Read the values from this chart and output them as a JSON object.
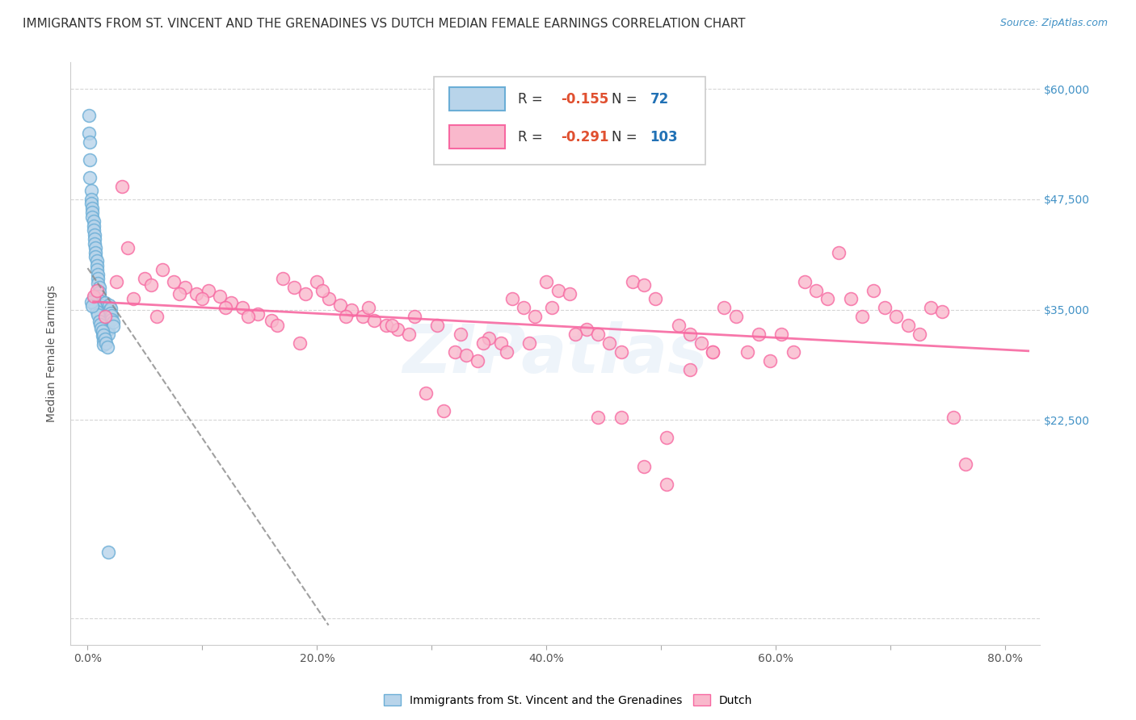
{
  "title": "IMMIGRANTS FROM ST. VINCENT AND THE GRENADINES VS DUTCH MEDIAN FEMALE EARNINGS CORRELATION CHART",
  "source": "Source: ZipAtlas.com",
  "ylabel": "Median Female Earnings",
  "x_ticks": [
    0.0,
    0.1,
    0.2,
    0.3,
    0.4,
    0.5,
    0.6,
    0.7,
    0.8
  ],
  "x_tick_labels": [
    "0.0%",
    "",
    "20.0%",
    "",
    "40.0%",
    "",
    "60.0%",
    "",
    "80.0%"
  ],
  "y_ticks": [
    0,
    22500,
    35000,
    47500,
    60000
  ],
  "y_tick_labels": [
    "",
    "$22,500",
    "$35,000",
    "$47,500",
    "$60,000"
  ],
  "xlim": [
    -0.015,
    0.83
  ],
  "ylim": [
    -3000,
    63000
  ],
  "blue_face_color": "#b8d4ea",
  "blue_edge_color": "#6baed6",
  "pink_face_color": "#f9b8cc",
  "pink_edge_color": "#f768a1",
  "blue_R": "-0.155",
  "blue_N": "72",
  "pink_R": "-0.291",
  "pink_N": "103",
  "legend_label_blue": "Immigrants from St. Vincent and the Grenadines",
  "legend_label_pink": "Dutch",
  "watermark": "ZIPatlas",
  "blue_scatter_x": [
    0.001,
    0.001,
    0.002,
    0.002,
    0.002,
    0.003,
    0.003,
    0.003,
    0.004,
    0.004,
    0.004,
    0.005,
    0.005,
    0.005,
    0.006,
    0.006,
    0.006,
    0.007,
    0.007,
    0.007,
    0.008,
    0.008,
    0.008,
    0.009,
    0.009,
    0.009,
    0.01,
    0.01,
    0.01,
    0.011,
    0.011,
    0.011,
    0.012,
    0.012,
    0.012,
    0.013,
    0.013,
    0.013,
    0.014,
    0.014,
    0.015,
    0.015,
    0.016,
    0.016,
    0.017,
    0.017,
    0.018,
    0.018,
    0.019,
    0.019,
    0.02,
    0.02,
    0.021,
    0.021,
    0.022,
    0.022,
    0.005,
    0.006,
    0.007,
    0.008,
    0.009,
    0.01,
    0.011,
    0.012,
    0.003,
    0.004,
    0.013,
    0.014,
    0.015,
    0.016,
    0.017,
    0.018
  ],
  "blue_scatter_y": [
    57000,
    55000,
    54000,
    52000,
    50000,
    48500,
    47500,
    47000,
    46500,
    46000,
    45500,
    45000,
    44500,
    44000,
    43500,
    43000,
    42500,
    42000,
    41500,
    41000,
    40500,
    40000,
    39500,
    39000,
    38500,
    38000,
    37500,
    37000,
    36500,
    36000,
    35500,
    35000,
    34500,
    34000,
    33500,
    33000,
    32500,
    32000,
    31500,
    31000,
    35800,
    35200,
    34800,
    34200,
    33800,
    33200,
    32800,
    32200,
    35500,
    34900,
    35100,
    34600,
    34300,
    33900,
    33600,
    33100,
    36200,
    35700,
    35300,
    34800,
    34400,
    33700,
    33300,
    32900,
    35900,
    35400,
    32600,
    32100,
    31700,
    31200,
    30800,
    7500
  ],
  "pink_scatter_x": [
    0.005,
    0.008,
    0.03,
    0.035,
    0.05,
    0.055,
    0.065,
    0.075,
    0.085,
    0.095,
    0.105,
    0.115,
    0.125,
    0.135,
    0.148,
    0.16,
    0.17,
    0.18,
    0.19,
    0.2,
    0.21,
    0.22,
    0.23,
    0.24,
    0.25,
    0.26,
    0.27,
    0.28,
    0.295,
    0.31,
    0.32,
    0.33,
    0.34,
    0.35,
    0.36,
    0.37,
    0.38,
    0.39,
    0.4,
    0.41,
    0.42,
    0.435,
    0.445,
    0.455,
    0.465,
    0.475,
    0.485,
    0.495,
    0.505,
    0.515,
    0.525,
    0.535,
    0.545,
    0.555,
    0.565,
    0.575,
    0.585,
    0.595,
    0.605,
    0.615,
    0.625,
    0.635,
    0.645,
    0.655,
    0.665,
    0.675,
    0.685,
    0.695,
    0.705,
    0.715,
    0.725,
    0.735,
    0.745,
    0.755,
    0.765,
    0.015,
    0.025,
    0.04,
    0.06,
    0.08,
    0.1,
    0.12,
    0.14,
    0.165,
    0.185,
    0.205,
    0.225,
    0.245,
    0.265,
    0.285,
    0.305,
    0.325,
    0.345,
    0.365,
    0.385,
    0.405,
    0.425,
    0.445,
    0.465,
    0.485,
    0.505,
    0.525,
    0.545
  ],
  "pink_scatter_y": [
    36500,
    37200,
    49000,
    42000,
    38500,
    37800,
    39500,
    38200,
    37500,
    36800,
    37200,
    36500,
    35800,
    35200,
    34500,
    33800,
    38500,
    37500,
    36800,
    38200,
    36200,
    35500,
    35000,
    34200,
    33800,
    33200,
    32800,
    32200,
    25500,
    23500,
    30200,
    29800,
    29200,
    31800,
    31200,
    36200,
    35200,
    34200,
    38200,
    37200,
    36800,
    32800,
    32200,
    31200,
    30200,
    38200,
    37800,
    36200,
    20500,
    33200,
    32200,
    31200,
    30200,
    35200,
    34200,
    30200,
    32200,
    29200,
    32200,
    30200,
    38200,
    37200,
    36200,
    41500,
    36200,
    34200,
    37200,
    35200,
    34200,
    33200,
    32200,
    35200,
    34800,
    22800,
    17500,
    34200,
    38200,
    36200,
    34200,
    36800,
    36200,
    35200,
    34200,
    33200,
    31200,
    37200,
    34200,
    35200,
    33200,
    34200,
    33200,
    32200,
    31200,
    30200,
    31200,
    35200,
    32200,
    22800,
    22800,
    17200,
    15200,
    28200,
    30200
  ]
}
